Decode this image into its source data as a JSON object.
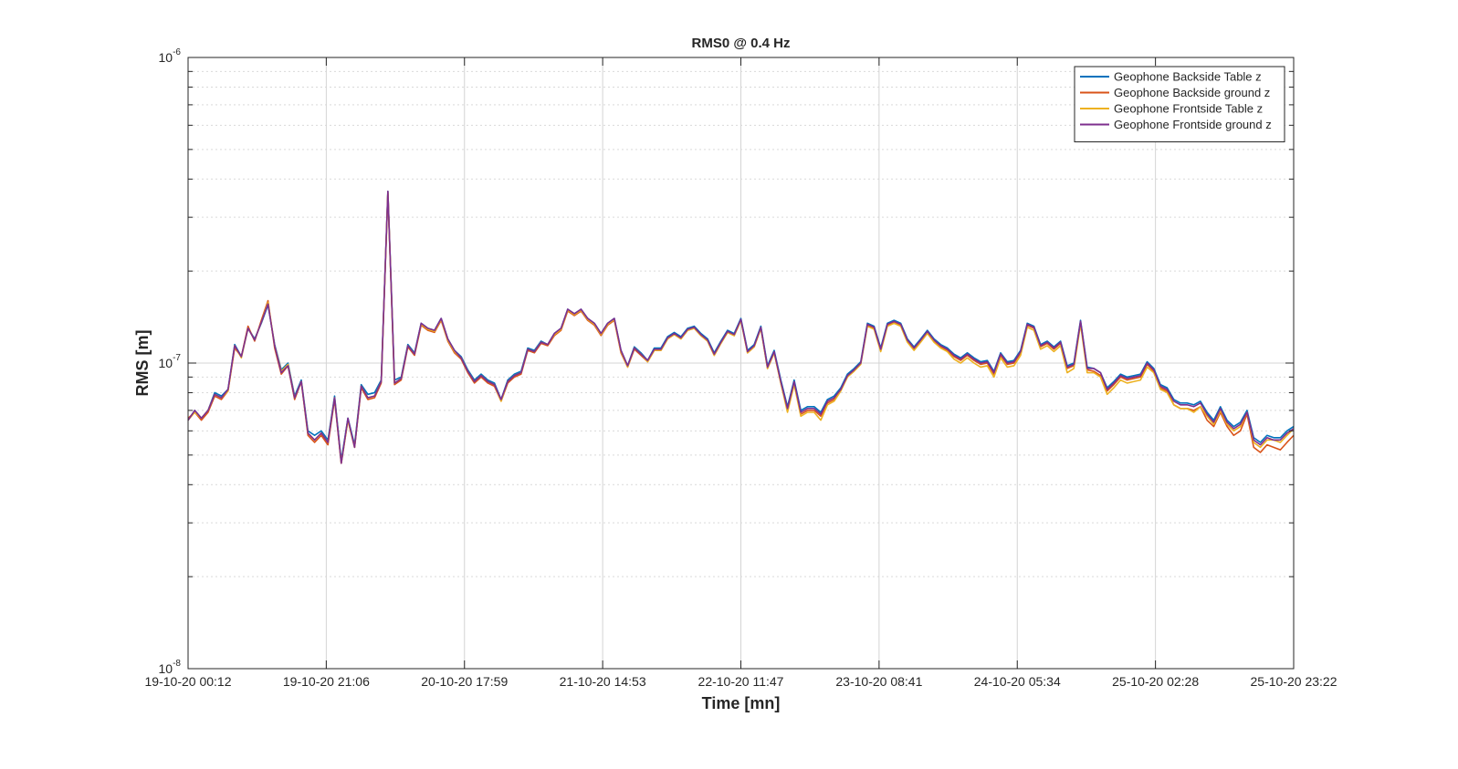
{
  "chart_data": {
    "type": "line",
    "title": "RMS0 @ 0.4 Hz",
    "xlabel": "Time [mn]",
    "ylabel": "RMS [m]",
    "yscale": "log",
    "ylim": [
      1e-08,
      1e-06
    ],
    "y_ticks": [
      {
        "value": 1e-08,
        "base": "10",
        "exp": "-8"
      },
      {
        "value": 1e-07,
        "base": "10",
        "exp": "-7"
      },
      {
        "value": 1e-06,
        "base": "10",
        "exp": "-6"
      }
    ],
    "x_tick_labels": [
      "19-10-20 00:12",
      "19-10-20 21:06",
      "20-10-20 17:59",
      "21-10-20 14:53",
      "22-10-20 11:47",
      "23-10-20 08:41",
      "24-10-20 05:34",
      "25-10-20 02:28",
      "25-10-20 23:22"
    ],
    "grid": true,
    "legend_location": "top-right",
    "series": [
      {
        "name": "Geophone Backside Table z",
        "color": "#0072BD",
        "values": [
          6.5,
          7.0,
          6.6,
          7.0,
          8.0,
          7.8,
          8.2,
          11.5,
          10.5,
          13.0,
          12.0,
          13.5,
          15.5,
          11.5,
          9.5,
          10.0,
          7.8,
          8.8,
          6.0,
          5.8,
          6.0,
          5.6,
          7.8,
          4.8,
          6.6,
          5.4,
          8.5,
          7.9,
          8.0,
          8.8,
          36.5,
          8.8,
          9.0,
          11.5,
          10.8,
          13.5,
          13.0,
          12.8,
          14.0,
          12.0,
          11.0,
          10.5,
          9.5,
          8.8,
          9.2,
          8.8,
          8.6,
          7.6,
          8.8,
          9.2,
          9.4,
          11.2,
          11.0,
          11.8,
          11.5,
          12.5,
          13.0,
          15.0,
          14.5,
          15.0,
          14.0,
          13.5,
          12.5,
          13.5,
          14.0,
          11.0,
          9.8,
          11.3,
          10.8,
          10.2,
          11.2,
          11.2,
          12.2,
          12.6,
          12.2,
          13.0,
          13.2,
          12.5,
          12.0,
          10.8,
          11.8,
          12.8,
          12.5,
          14.0,
          11.0,
          11.5,
          13.2,
          9.8,
          11.0,
          8.8,
          7.2,
          8.8,
          7.0,
          7.2,
          7.2,
          6.9,
          7.6,
          7.8,
          8.3,
          9.2,
          9.6,
          10.1,
          13.5,
          13.2,
          11.2,
          13.5,
          13.8,
          13.5,
          12.0,
          11.3,
          12.0,
          12.8,
          12.0,
          11.5,
          11.2,
          10.7,
          10.4,
          10.8,
          10.4,
          10.1,
          10.2,
          9.4,
          10.8,
          10.1,
          10.2,
          11.0,
          13.5,
          13.2,
          11.5,
          11.8,
          11.3,
          11.8,
          9.8,
          10.0,
          13.8,
          9.7,
          9.6,
          9.3,
          8.3,
          8.7,
          9.2,
          9.0,
          9.1,
          9.2,
          10.1,
          9.6,
          8.5,
          8.3,
          7.6,
          7.4,
          7.4,
          7.3,
          7.5,
          6.9,
          6.5,
          7.2,
          6.5,
          6.2,
          6.4,
          7.0,
          5.7,
          5.5,
          5.8,
          5.7,
          5.7,
          6.0,
          6.2
        ]
      },
      {
        "name": "Geophone Backside ground z",
        "color": "#D95319",
        "values": [
          6.6,
          6.9,
          6.5,
          6.9,
          7.8,
          7.6,
          8.1,
          11.2,
          10.5,
          13.2,
          11.8,
          13.8,
          16.0,
          11.2,
          9.2,
          9.8,
          7.6,
          8.7,
          5.8,
          5.5,
          5.8,
          5.4,
          7.6,
          4.7,
          6.5,
          5.3,
          8.3,
          7.6,
          7.7,
          8.6,
          36.0,
          8.5,
          8.8,
          11.3,
          10.6,
          13.3,
          12.8,
          12.6,
          13.8,
          11.8,
          10.8,
          10.3,
          9.3,
          8.6,
          9.0,
          8.6,
          8.4,
          7.5,
          8.6,
          9.0,
          9.2,
          11.0,
          10.8,
          11.6,
          11.4,
          12.3,
          12.8,
          14.8,
          14.3,
          14.8,
          13.8,
          13.3,
          12.3,
          13.3,
          13.8,
          10.8,
          9.7,
          11.1,
          10.6,
          10.1,
          11.0,
          11.0,
          12.0,
          12.4,
          12.0,
          12.8,
          13.0,
          12.3,
          11.8,
          10.6,
          11.6,
          12.6,
          12.3,
          13.8,
          10.8,
          11.3,
          13.0,
          9.6,
          10.8,
          8.6,
          7.0,
          8.6,
          6.8,
          7.0,
          7.0,
          6.7,
          7.4,
          7.6,
          8.2,
          9.0,
          9.5,
          10.0,
          13.3,
          13.0,
          11.0,
          13.3,
          13.6,
          13.3,
          11.8,
          11.1,
          11.8,
          12.6,
          11.8,
          11.3,
          11.0,
          10.5,
          10.2,
          10.6,
          10.2,
          9.9,
          10.0,
          9.2,
          10.6,
          9.9,
          10.0,
          10.8,
          13.3,
          13.0,
          11.3,
          11.6,
          11.1,
          11.6,
          9.6,
          9.8,
          13.6,
          9.5,
          9.4,
          9.1,
          8.1,
          8.5,
          9.0,
          8.8,
          8.9,
          9.0,
          9.9,
          9.4,
          8.3,
          8.1,
          7.3,
          7.1,
          7.1,
          7.0,
          7.2,
          6.5,
          6.2,
          6.9,
          6.2,
          5.8,
          6.0,
          6.8,
          5.3,
          5.1,
          5.4,
          5.3,
          5.2,
          5.5,
          5.8
        ]
      },
      {
        "name": "Geophone Frontside Table z",
        "color": "#EDB120",
        "values": [
          6.5,
          6.9,
          6.6,
          7.0,
          7.9,
          7.7,
          8.1,
          11.4,
          10.4,
          13.0,
          11.9,
          13.6,
          15.8,
          11.4,
          9.4,
          9.9,
          7.7,
          8.7,
          5.9,
          5.6,
          5.9,
          5.5,
          7.7,
          4.7,
          6.5,
          5.3,
          8.4,
          7.7,
          7.8,
          8.7,
          36.2,
          8.6,
          8.9,
          11.4,
          10.7,
          13.4,
          12.9,
          12.7,
          13.9,
          11.9,
          10.9,
          10.4,
          9.4,
          8.7,
          9.1,
          8.7,
          8.5,
          7.5,
          8.7,
          9.1,
          9.3,
          11.1,
          10.9,
          11.7,
          11.5,
          12.4,
          12.9,
          14.9,
          14.4,
          14.9,
          13.9,
          13.4,
          12.4,
          13.4,
          13.9,
          10.9,
          9.7,
          11.2,
          10.7,
          10.1,
          11.0,
          11.0,
          12.0,
          12.4,
          12.0,
          12.8,
          13.0,
          12.3,
          11.8,
          10.6,
          11.6,
          12.6,
          12.3,
          13.8,
          10.8,
          11.3,
          13.0,
          9.6,
          10.8,
          8.6,
          6.9,
          8.5,
          6.7,
          6.9,
          6.9,
          6.5,
          7.3,
          7.5,
          8.1,
          9.0,
          9.4,
          9.9,
          13.2,
          12.9,
          10.9,
          13.2,
          13.5,
          13.2,
          11.7,
          11.0,
          11.7,
          12.5,
          11.7,
          11.2,
          10.9,
          10.3,
          10.0,
          10.4,
          10.0,
          9.7,
          9.8,
          9.0,
          10.4,
          9.7,
          9.8,
          10.6,
          13.1,
          12.8,
          11.1,
          11.4,
          10.9,
          11.4,
          9.3,
          9.6,
          13.4,
          9.3,
          9.3,
          9.0,
          7.9,
          8.3,
          8.8,
          8.6,
          8.7,
          8.8,
          9.7,
          9.3,
          8.2,
          8.0,
          7.3,
          7.1,
          7.1,
          6.9,
          7.2,
          6.7,
          6.3,
          7.0,
          6.3,
          6.0,
          6.2,
          6.9,
          5.5,
          5.3,
          5.6,
          5.6,
          5.5,
          5.8,
          6.1
        ]
      },
      {
        "name": "Geophone Frontside ground z",
        "color": "#7E2F8E",
        "values": [
          6.5,
          7.0,
          6.6,
          7.0,
          7.9,
          7.7,
          8.2,
          11.4,
          10.5,
          13.0,
          11.9,
          13.6,
          15.6,
          11.4,
          9.3,
          9.8,
          7.7,
          8.7,
          5.9,
          5.6,
          5.9,
          5.5,
          7.7,
          4.7,
          6.6,
          5.3,
          8.4,
          7.7,
          7.8,
          8.7,
          36.5,
          8.6,
          8.9,
          11.4,
          10.7,
          13.5,
          13.0,
          12.8,
          14.0,
          12.0,
          11.0,
          10.4,
          9.4,
          8.7,
          9.1,
          8.7,
          8.5,
          7.6,
          8.7,
          9.1,
          9.3,
          11.1,
          10.9,
          11.7,
          11.5,
          12.5,
          13.0,
          15.0,
          14.5,
          15.0,
          14.0,
          13.5,
          12.5,
          13.5,
          14.0,
          11.0,
          9.8,
          11.2,
          10.7,
          10.2,
          11.1,
          11.1,
          12.1,
          12.5,
          12.1,
          12.9,
          13.1,
          12.4,
          11.9,
          10.7,
          11.7,
          12.7,
          12.4,
          13.9,
          10.9,
          11.4,
          13.1,
          9.7,
          10.9,
          8.7,
          7.1,
          8.7,
          6.9,
          7.1,
          7.1,
          6.8,
          7.5,
          7.7,
          8.2,
          9.1,
          9.5,
          10.0,
          13.4,
          13.1,
          11.1,
          13.4,
          13.7,
          13.4,
          11.9,
          11.2,
          11.9,
          12.7,
          11.9,
          11.4,
          11.1,
          10.6,
          10.3,
          10.7,
          10.3,
          10.0,
          10.1,
          9.3,
          10.7,
          10.0,
          10.1,
          10.9,
          13.4,
          13.1,
          11.4,
          11.7,
          11.2,
          11.7,
          9.7,
          9.9,
          13.7,
          9.6,
          9.6,
          9.3,
          8.2,
          8.6,
          9.1,
          8.9,
          9.0,
          9.1,
          10.0,
          9.5,
          8.4,
          8.2,
          7.5,
          7.3,
          7.3,
          7.2,
          7.4,
          6.8,
          6.4,
          7.1,
          6.4,
          6.1,
          6.3,
          6.9,
          5.6,
          5.4,
          5.7,
          5.6,
          5.6,
          5.9,
          6.1
        ]
      }
    ],
    "value_unit_note": "values are RMS in units of 1e-8 m"
  }
}
